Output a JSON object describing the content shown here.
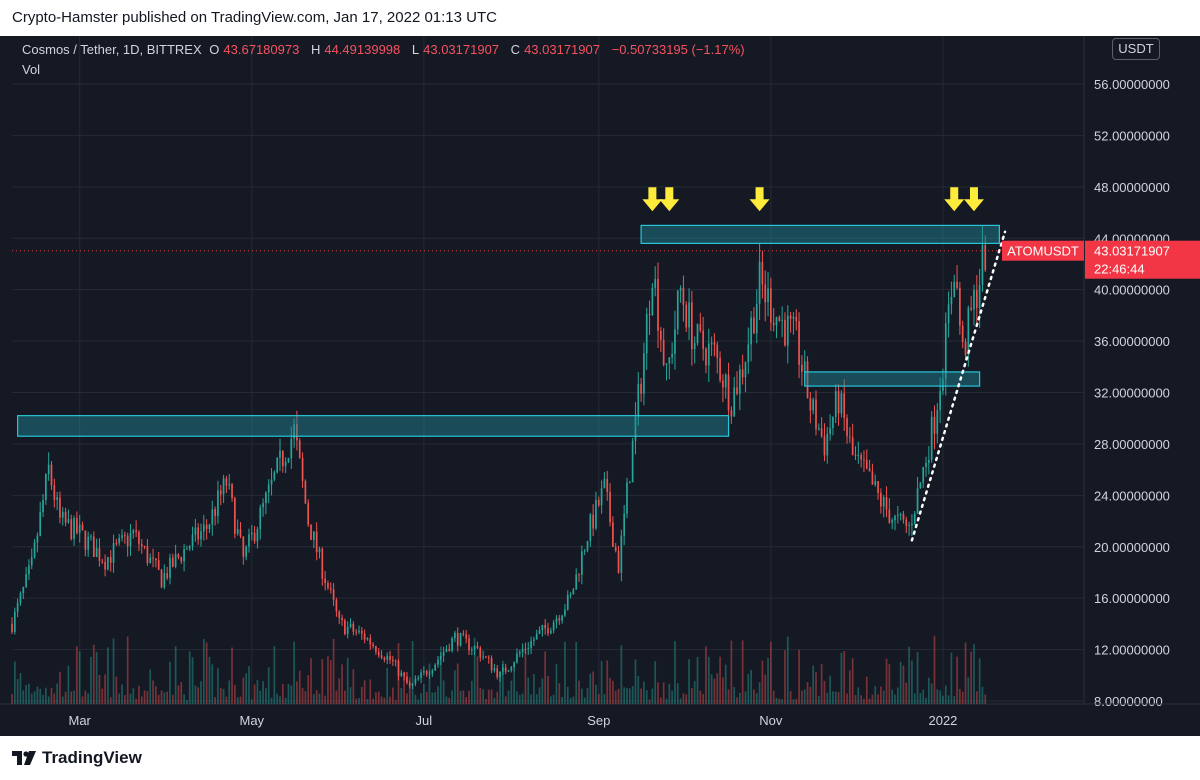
{
  "header": {
    "publisher_text": "Crypto-Hamster published on TradingView.com, Jan 17, 2022 01:13 UTC"
  },
  "legend": {
    "symbol": "Cosmos / Tether, 1D, BITTREX",
    "o_label": "O",
    "o_value": "43.67180973",
    "h_label": "H",
    "h_value": "44.49139998",
    "l_label": "L",
    "l_value": "43.03171907",
    "c_label": "C",
    "c_value": "43.03171907",
    "change": "−0.50733195 (−1.17%)",
    "vol_label": "Vol"
  },
  "currency_button": "USDT",
  "footer": {
    "brand": "TradingView"
  },
  "colors": {
    "background": "#151924",
    "up": "#26a69a",
    "down": "#ef5350",
    "zone_fill": "#1e8c9a",
    "zone_border": "#27c6d8",
    "arrow": "#ffeb3b",
    "price_tag": "#f23645",
    "grid": "#262a35"
  },
  "chart_data": {
    "type": "candlestick",
    "title": "Cosmos / Tether, 1D, BITTREX",
    "x_ticks": [
      "Mar",
      "May",
      "Jul",
      "Sep",
      "Nov",
      "2022"
    ],
    "y_ticks": [
      "56.00000000",
      "52.00000000",
      "48.00000000",
      "44.00000000",
      "40.00000000",
      "36.00000000",
      "32.00000000",
      "28.00000000",
      "24.00000000",
      "20.00000000",
      "16.00000000",
      "12.00000000",
      "8.00000000"
    ],
    "y_range": [
      8,
      58
    ],
    "x_range": [
      "2021-02-05",
      "2022-02-20"
    ],
    "grid": true,
    "last_price": {
      "label": "ATOMUSDT",
      "price": "43.03171907",
      "countdown": "22:46:44",
      "value": 43.03
    },
    "price_path": [
      [
        "2021-02-05",
        14.0
      ],
      [
        "2021-02-12",
        18.5
      ],
      [
        "2021-02-18",
        26.0
      ],
      [
        "2021-02-22",
        22.0
      ],
      [
        "2021-03-01",
        21.0
      ],
      [
        "2021-03-10",
        19.0
      ],
      [
        "2021-03-20",
        21.0
      ],
      [
        "2021-03-30",
        17.5
      ],
      [
        "2021-04-08",
        20.0
      ],
      [
        "2021-04-15",
        21.5
      ],
      [
        "2021-04-22",
        25.0
      ],
      [
        "2021-04-28",
        19.0
      ],
      [
        "2021-05-05",
        23.0
      ],
      [
        "2021-05-12",
        27.0
      ],
      [
        "2021-05-16",
        29.0
      ],
      [
        "2021-05-21",
        22.0
      ],
      [
        "2021-05-25",
        19.0
      ],
      [
        "2021-06-01",
        14.0
      ],
      [
        "2021-06-10",
        13.0
      ],
      [
        "2021-06-20",
        11.0
      ],
      [
        "2021-06-26",
        9.0
      ],
      [
        "2021-07-05",
        11.0
      ],
      [
        "2021-07-12",
        13.0
      ],
      [
        "2021-07-20",
        12.0
      ],
      [
        "2021-07-28",
        10.0
      ],
      [
        "2021-08-05",
        12.0
      ],
      [
        "2021-08-15",
        14.0
      ],
      [
        "2021-08-22",
        16.0
      ],
      [
        "2021-08-28",
        21.0
      ],
      [
        "2021-09-03",
        24.5
      ],
      [
        "2021-09-08",
        18.5
      ],
      [
        "2021-09-12",
        26.0
      ],
      [
        "2021-09-17",
        35.0
      ],
      [
        "2021-09-20",
        42.0
      ],
      [
        "2021-09-25",
        33.0
      ],
      [
        "2021-09-30",
        40.0
      ],
      [
        "2021-10-05",
        36.0
      ],
      [
        "2021-10-12",
        35.0
      ],
      [
        "2021-10-18",
        31.5
      ],
      [
        "2021-10-22",
        34.0
      ],
      [
        "2021-10-28",
        40.5
      ],
      [
        "2021-11-03",
        38.0
      ],
      [
        "2021-11-10",
        36.0
      ],
      [
        "2021-11-15",
        31.0
      ],
      [
        "2021-11-20",
        28.0
      ],
      [
        "2021-11-25",
        31.5
      ],
      [
        "2021-11-30",
        27.0
      ],
      [
        "2021-12-05",
        25.5
      ],
      [
        "2021-12-10",
        23.5
      ],
      [
        "2021-12-15",
        22.0
      ],
      [
        "2021-12-20",
        21.5
      ],
      [
        "2021-12-24",
        25.0
      ],
      [
        "2021-12-29",
        30.0
      ],
      [
        "2022-01-02",
        36.0
      ],
      [
        "2022-01-05",
        42.0
      ],
      [
        "2022-01-08",
        35.0
      ],
      [
        "2022-01-12",
        39.0
      ],
      [
        "2022-01-16",
        43.0
      ]
    ],
    "zones": [
      {
        "name": "lower-resistance-zone",
        "start": "2021-02-07",
        "end": "2021-10-17",
        "low": 28.6,
        "high": 30.2
      },
      {
        "name": "upper-resistance-zone",
        "start": "2021-09-16",
        "end": "2022-01-21",
        "low": 43.6,
        "high": 45.0
      },
      {
        "name": "mid-support-zone",
        "start": "2021-11-13",
        "end": "2022-01-14",
        "low": 32.5,
        "high": 33.6
      }
    ],
    "arrows": [
      "2021-09-20",
      "2021-09-26",
      "2021-10-28",
      "2022-01-05",
      "2022-01-12"
    ],
    "trendline": {
      "start": [
        "2021-12-21",
        20.5
      ],
      "end": [
        "2022-01-23",
        44.5
      ]
    }
  }
}
